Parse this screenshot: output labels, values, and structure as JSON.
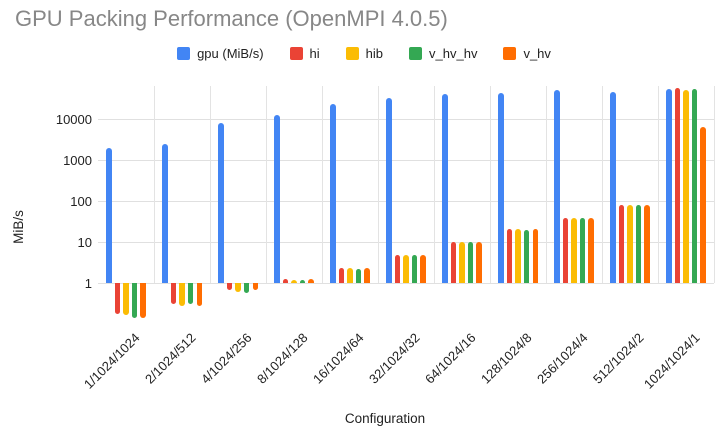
{
  "title": "GPU Packing Performance (OpenMPI 4.0.5)",
  "axis": {
    "y_label": "MiB/s",
    "x_label": "Configuration",
    "y_tick_labels": [
      "1",
      "10",
      "100",
      "1000",
      "10000"
    ]
  },
  "chart_data": {
    "type": "bar",
    "title": "GPU Packing Performance (OpenMPI 4.0.5)",
    "xlabel": "Configuration",
    "ylabel": "MiB/s",
    "y_scale": "log",
    "baseline": 1,
    "yticks": [
      1,
      10,
      100,
      1000,
      10000
    ],
    "ylim": [
      0.1,
      60000
    ],
    "grid": true,
    "legend_position": "top",
    "categories": [
      "1/1024/1024",
      "2/1024/512",
      "4/1024/256",
      "8/1024/128",
      "16/1024/64",
      "32/1024/32",
      "64/1024/16",
      "128/1024/8",
      "256/1024/4",
      "512/1024/2",
      "1024/1024/1"
    ],
    "series": [
      {
        "name": "gpu (MiB/s)",
        "color": "#4285f4",
        "values": [
          2000,
          2450,
          7900,
          12800,
          23000,
          32000,
          40000,
          44000,
          50000,
          46000,
          54000
        ]
      },
      {
        "name": "hi",
        "color": "#ea4335",
        "values": [
          0.18,
          0.31,
          0.67,
          1.25,
          2.3,
          4.8,
          10,
          20.5,
          38,
          80,
          56000
        ]
      },
      {
        "name": "hib",
        "color": "#fbbc04",
        "values": [
          0.17,
          0.28,
          0.62,
          1.2,
          2.3,
          4.8,
          10,
          21,
          38,
          82,
          51000
        ]
      },
      {
        "name": "v_hv_hv",
        "color": "#34a853",
        "values": [
          0.14,
          0.31,
          0.58,
          1.2,
          2.25,
          4.7,
          10,
          20,
          38,
          79,
          55000
        ]
      },
      {
        "name": "v_hv",
        "color": "#ff6d01",
        "values": [
          0.14,
          0.28,
          0.67,
          1.25,
          2.35,
          4.9,
          10.3,
          21,
          39,
          81,
          6500
        ]
      }
    ]
  }
}
